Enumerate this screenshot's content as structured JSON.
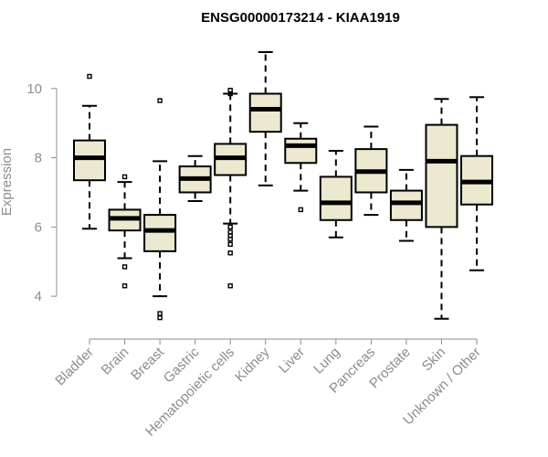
{
  "chart_data": {
    "type": "boxplot",
    "title": "ENSG00000173214 - KIAA1919",
    "xlabel": "",
    "ylabel": "Expression",
    "yticks": [
      4,
      6,
      8,
      10
    ],
    "ylim": [
      3.0,
      11.5
    ],
    "box_fill": "#ede8d0",
    "box_stroke": "#000000",
    "axis_color": "#8c8c8c",
    "categories": [
      "Bladder",
      "Brain",
      "Breast",
      "Gastric",
      "Hematopoietic cells",
      "Kidney",
      "Liver",
      "Lung",
      "Pancreas",
      "Prostate",
      "Skin",
      "Unknown / Other"
    ],
    "boxes": [
      {
        "whisker_low": 5.95,
        "q1": 7.35,
        "median": 8.0,
        "q3": 8.5,
        "whisker_high": 9.5,
        "outliers": [
          10.35
        ]
      },
      {
        "whisker_low": 5.1,
        "q1": 5.9,
        "median": 6.25,
        "q3": 6.5,
        "whisker_high": 7.3,
        "outliers": [
          7.45,
          4.85,
          4.3
        ]
      },
      {
        "whisker_low": 4.0,
        "q1": 5.3,
        "median": 5.9,
        "q3": 6.35,
        "whisker_high": 7.9,
        "outliers": [
          9.65,
          3.5,
          3.38
        ]
      },
      {
        "whisker_low": 6.75,
        "q1": 7.0,
        "median": 7.4,
        "q3": 7.75,
        "whisker_high": 8.05,
        "outliers": []
      },
      {
        "whisker_low": 6.1,
        "q1": 7.5,
        "median": 8.0,
        "q3": 8.4,
        "whisker_high": 9.85,
        "outliers": [
          9.95,
          9.85,
          6.0,
          5.85,
          5.75,
          5.65,
          5.5,
          5.25,
          4.3
        ]
      },
      {
        "whisker_low": 7.2,
        "q1": 8.75,
        "median": 9.4,
        "q3": 9.85,
        "whisker_high": 11.05,
        "outliers": []
      },
      {
        "whisker_low": 7.05,
        "q1": 7.85,
        "median": 8.35,
        "q3": 8.55,
        "whisker_high": 9.0,
        "outliers": [
          6.5
        ]
      },
      {
        "whisker_low": 5.7,
        "q1": 6.2,
        "median": 6.7,
        "q3": 7.45,
        "whisker_high": 8.2,
        "outliers": []
      },
      {
        "whisker_low": 6.35,
        "q1": 7.0,
        "median": 7.6,
        "q3": 8.25,
        "whisker_high": 8.9,
        "outliers": []
      },
      {
        "whisker_low": 5.6,
        "q1": 6.2,
        "median": 6.7,
        "q3": 7.05,
        "whisker_high": 7.65,
        "outliers": []
      },
      {
        "whisker_low": 3.35,
        "q1": 6.0,
        "median": 7.9,
        "q3": 8.95,
        "whisker_high": 9.7,
        "outliers": []
      },
      {
        "whisker_low": 4.75,
        "q1": 6.65,
        "median": 7.3,
        "q3": 8.05,
        "whisker_high": 9.75,
        "outliers": []
      }
    ]
  }
}
